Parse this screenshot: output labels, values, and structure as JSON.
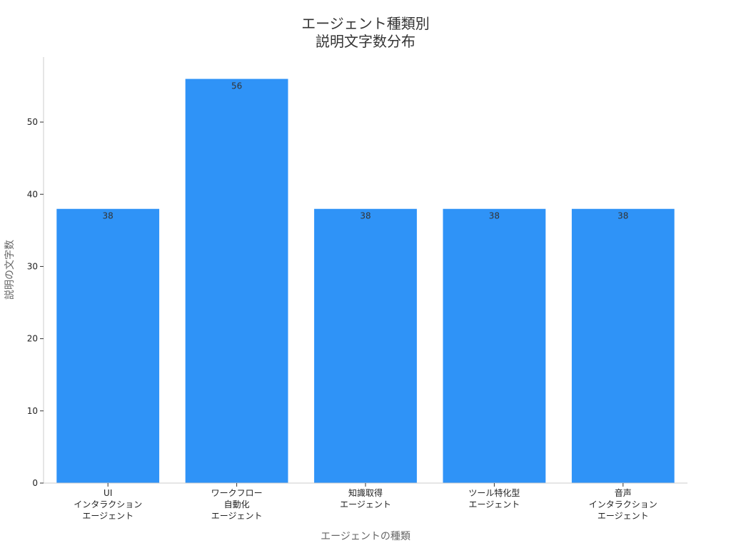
{
  "chart_data": {
    "type": "bar",
    "title_lines": [
      "エージェント種類別",
      "説明文字数分布"
    ],
    "xlabel": "エージェントの種類",
    "ylabel": "説明の文字数",
    "categories": [
      [
        "UI",
        "インタラクション",
        "エージェント"
      ],
      [
        "ワークフロー",
        "自動化",
        "エージェント"
      ],
      [
        "知識取得",
        "エージェント"
      ],
      [
        "ツール特化型",
        "エージェント"
      ],
      [
        "音声",
        "インタラクション",
        "エージェント"
      ]
    ],
    "values": [
      38,
      56,
      38,
      38,
      38
    ],
    "data_labels": [
      "38",
      "56",
      "38",
      "38",
      "38"
    ],
    "ylim": [
      0,
      59
    ],
    "yticks": [
      0,
      10,
      20,
      30,
      40,
      50
    ],
    "grid": false,
    "legend": "none",
    "colors": {
      "bar": "#2f93f7",
      "axis": "#cccccc"
    }
  }
}
